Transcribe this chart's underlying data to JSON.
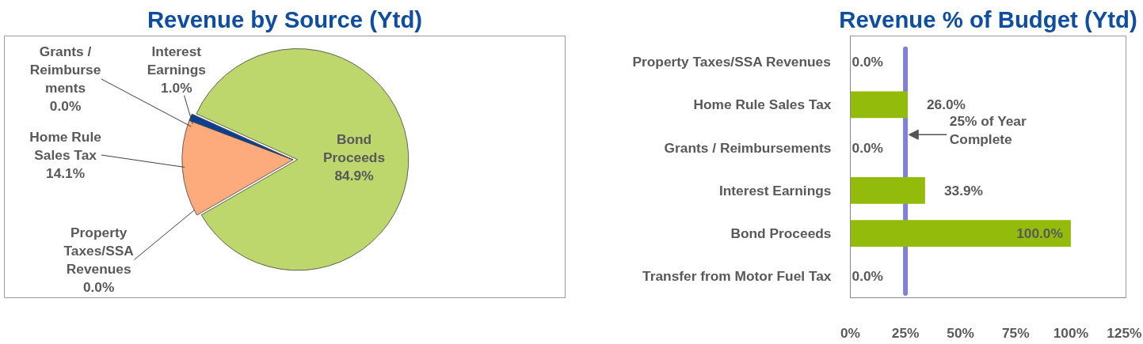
{
  "chart_data": [
    {
      "type": "pie",
      "title": "Revenue by Source (Ytd)",
      "categories": [
        "Property\nTaxes/SSA\nRevenues",
        "Home Rule\nSales Tax",
        "Grants /\nReimburse\nments",
        "Interest\nEarnings",
        "Bond\nProceeds"
      ],
      "values": [
        0.0,
        14.1,
        0.0,
        1.0,
        84.9
      ],
      "colors": [
        "#8064a2",
        "#fdab7c",
        "#4bacc6",
        "#0c3f8f",
        "#bdd76c"
      ],
      "value_labels": [
        "0.0%",
        "14.1%",
        "0.0%",
        "1.0%",
        "84.9%"
      ]
    },
    {
      "type": "bar",
      "orientation": "horizontal",
      "title": "Revenue % of Budget (Ytd)",
      "categories": [
        "Property Taxes/SSA Revenues",
        "Home Rule Sales Tax",
        "Grants / Reimbursements",
        "Interest Earnings",
        "Bond Proceeds",
        "Transfer from Motor Fuel Tax"
      ],
      "values": [
        0.0,
        26.0,
        0.0,
        33.9,
        100.0,
        0.0
      ],
      "color": "#93bb0b",
      "value_labels": [
        "0.0%",
        "26.0%",
        "0.0%",
        "33.9%",
        "100.0%",
        "0.0%"
      ],
      "xlim": [
        0,
        125
      ],
      "xticks": [
        {
          "value": 0,
          "label": "0%"
        },
        {
          "value": 25,
          "label": "25%"
        },
        {
          "value": 50,
          "label": "50%"
        },
        {
          "value": 75,
          "label": "75%"
        },
        {
          "value": 100,
          "label": "100%"
        },
        {
          "value": 125,
          "label": "125%"
        }
      ],
      "ref_lines": [
        {
          "axis": "x",
          "value": 25,
          "label": "25% of Year\nComplete",
          "color": "#8080d8"
        }
      ],
      "grid": false
    }
  ]
}
